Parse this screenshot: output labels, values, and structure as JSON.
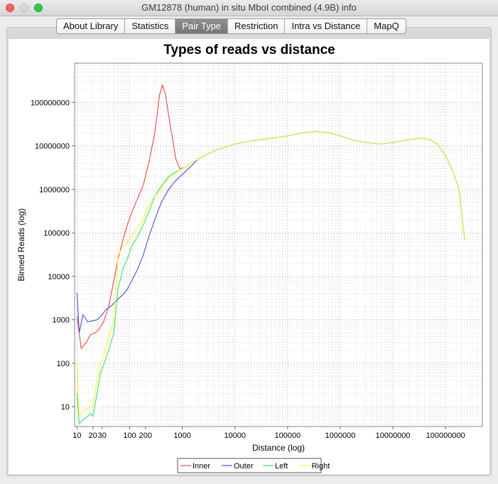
{
  "window": {
    "title": "GM12878 (human)  in situ MboI combined (4.9B) info"
  },
  "tabs": [
    {
      "label": "About Library",
      "active": false
    },
    {
      "label": "Statistics",
      "active": false
    },
    {
      "label": "Pair Type",
      "active": true
    },
    {
      "label": "Restriction",
      "active": false
    },
    {
      "label": "Intra vs Distance",
      "active": false
    },
    {
      "label": "MapQ",
      "active": false
    }
  ],
  "chart_data": {
    "type": "line",
    "title": "Types of reads vs distance",
    "xlabel": "Distance (log)",
    "ylabel": "Binned Reads (log)",
    "x_scale": "log",
    "y_scale": "log",
    "xlim": [
      9,
      500000000
    ],
    "ylim": [
      3.5,
      800000000
    ],
    "grid": true,
    "legend_position": "bottom",
    "x_ticks": [
      {
        "v": 10,
        "label": "10"
      },
      {
        "v": 20,
        "label": "20"
      },
      {
        "v": 30,
        "label": "30"
      },
      {
        "v": 100,
        "label": "100"
      },
      {
        "v": 200,
        "label": "200"
      },
      {
        "v": 1000,
        "label": "1000"
      },
      {
        "v": 10000,
        "label": "10000"
      },
      {
        "v": 100000,
        "label": "100000"
      },
      {
        "v": 1000000,
        "label": "1000000"
      },
      {
        "v": 10000000,
        "label": "10000000"
      },
      {
        "v": 100000000,
        "label": "100000000"
      }
    ],
    "y_ticks": [
      {
        "v": 10,
        "label": "10"
      },
      {
        "v": 100,
        "label": "100"
      },
      {
        "v": 1000,
        "label": "1000"
      },
      {
        "v": 10000,
        "label": "10000"
      },
      {
        "v": 100000,
        "label": "100000"
      },
      {
        "v": 1000000,
        "label": "1000000"
      },
      {
        "v": 10000000,
        "label": "10000000"
      },
      {
        "v": 100000000,
        "label": "100000000"
      }
    ],
    "series": [
      {
        "name": "Inner",
        "color": "#e8474c",
        "points": [
          [
            10,
            1200
          ],
          [
            12,
            220
          ],
          [
            15,
            300
          ],
          [
            18,
            450
          ],
          [
            22,
            500
          ],
          [
            26,
            600
          ],
          [
            32,
            900
          ],
          [
            40,
            2000
          ],
          [
            50,
            8000
          ],
          [
            60,
            25000
          ],
          [
            75,
            70000
          ],
          [
            90,
            150000
          ],
          [
            110,
            300000
          ],
          [
            140,
            600000
          ],
          [
            180,
            1200000
          ],
          [
            230,
            4000000
          ],
          [
            300,
            20000000
          ],
          [
            370,
            150000000
          ],
          [
            420,
            250000000
          ],
          [
            480,
            150000000
          ],
          [
            550,
            50000000
          ],
          [
            650,
            15000000
          ],
          [
            750,
            5000000
          ],
          [
            900,
            3000000
          ],
          [
            1100,
            3200000
          ],
          [
            1500,
            4000000
          ],
          [
            2000,
            5000000
          ],
          [
            3000,
            6500000
          ],
          [
            5000,
            8500000
          ],
          [
            10000,
            11000000
          ],
          [
            20000,
            13000000
          ],
          [
            50000,
            15000000
          ],
          [
            100000,
            17000000
          ],
          [
            200000,
            20000000
          ],
          [
            350000,
            21500000
          ],
          [
            600000,
            20000000
          ],
          [
            1000000,
            17000000
          ],
          [
            2000000,
            13000000
          ],
          [
            4000000,
            11500000
          ],
          [
            6000000,
            11000000
          ],
          [
            10000000,
            12000000
          ],
          [
            20000000,
            14000000
          ],
          [
            35000000,
            15000000
          ],
          [
            50000000,
            14000000
          ],
          [
            70000000,
            11000000
          ],
          [
            100000000,
            6000000
          ],
          [
            140000000,
            2500000
          ],
          [
            180000000,
            1000000
          ],
          [
            230000000,
            70000
          ]
        ]
      },
      {
        "name": "Outer",
        "color": "#4a4ed8",
        "points": [
          [
            10,
            4200
          ],
          [
            11,
            500
          ],
          [
            13,
            1300
          ],
          [
            16,
            900
          ],
          [
            20,
            950
          ],
          [
            24,
            1000
          ],
          [
            30,
            1300
          ],
          [
            35,
            1700
          ],
          [
            45,
            2100
          ],
          [
            60,
            3000
          ],
          [
            75,
            3800
          ],
          [
            90,
            5000
          ],
          [
            110,
            8000
          ],
          [
            140,
            14000
          ],
          [
            180,
            30000
          ],
          [
            230,
            80000
          ],
          [
            300,
            200000
          ],
          [
            400,
            500000
          ],
          [
            550,
            1000000
          ],
          [
            750,
            1600000
          ],
          [
            1000,
            2200000
          ],
          [
            1500,
            3500000
          ],
          [
            2000,
            5000000
          ],
          [
            3000,
            6500000
          ],
          [
            5000,
            8500000
          ],
          [
            10000,
            11000000
          ],
          [
            20000,
            13000000
          ],
          [
            50000,
            15000000
          ],
          [
            100000,
            17000000
          ],
          [
            200000,
            20000000
          ],
          [
            350000,
            21500000
          ],
          [
            600000,
            20000000
          ],
          [
            1000000,
            17000000
          ],
          [
            2000000,
            13000000
          ],
          [
            4000000,
            11500000
          ],
          [
            6000000,
            11000000
          ],
          [
            10000000,
            12000000
          ],
          [
            20000000,
            14000000
          ],
          [
            35000000,
            15000000
          ],
          [
            50000000,
            14000000
          ],
          [
            70000000,
            11000000
          ],
          [
            100000000,
            6000000
          ],
          [
            140000000,
            2500000
          ],
          [
            180000000,
            1000000
          ],
          [
            230000000,
            70000
          ]
        ]
      },
      {
        "name": "Left",
        "color": "#3fe06a",
        "points": [
          [
            10,
            20
          ],
          [
            11,
            4
          ],
          [
            13,
            5
          ],
          [
            16,
            6
          ],
          [
            18,
            7
          ],
          [
            20,
            6
          ],
          [
            24,
            20
          ],
          [
            28,
            60
          ],
          [
            32,
            90
          ],
          [
            40,
            200
          ],
          [
            50,
            500
          ],
          [
            60,
            5000
          ],
          [
            75,
            15000
          ],
          [
            90,
            25000
          ],
          [
            110,
            50000
          ],
          [
            140,
            80000
          ],
          [
            180,
            150000
          ],
          [
            230,
            300000
          ],
          [
            300,
            700000
          ],
          [
            400,
            1200000
          ],
          [
            550,
            2000000
          ],
          [
            750,
            2500000
          ],
          [
            1000,
            3000000
          ],
          [
            1500,
            4000000
          ],
          [
            2000,
            5000000
          ],
          [
            3000,
            6500000
          ],
          [
            5000,
            8500000
          ],
          [
            10000,
            11000000
          ],
          [
            20000,
            13000000
          ],
          [
            50000,
            15000000
          ],
          [
            100000,
            17000000
          ],
          [
            200000,
            20000000
          ],
          [
            350000,
            21500000
          ],
          [
            600000,
            20000000
          ],
          [
            1000000,
            17000000
          ],
          [
            2000000,
            13000000
          ],
          [
            4000000,
            11500000
          ],
          [
            6000000,
            11000000
          ],
          [
            10000000,
            12000000
          ],
          [
            20000000,
            14000000
          ],
          [
            35000000,
            15000000
          ],
          [
            50000000,
            14000000
          ],
          [
            70000000,
            11000000
          ],
          [
            100000000,
            6000000
          ],
          [
            140000000,
            2500000
          ],
          [
            180000000,
            1000000
          ],
          [
            230000000,
            70000
          ]
        ]
      },
      {
        "name": "Right",
        "color": "#f6f33d",
        "points": [
          [
            10,
            100
          ],
          [
            11,
            6
          ],
          [
            13,
            8
          ],
          [
            16,
            9
          ],
          [
            18,
            10
          ],
          [
            20,
            10
          ],
          [
            24,
            40
          ],
          [
            28,
            100
          ],
          [
            32,
            150
          ],
          [
            40,
            400
          ],
          [
            50,
            1000
          ],
          [
            60,
            30000
          ],
          [
            75,
            50000
          ],
          [
            90,
            60000
          ],
          [
            110,
            90000
          ],
          [
            140,
            130000
          ],
          [
            180,
            200000
          ],
          [
            230,
            450000
          ],
          [
            300,
            700000
          ],
          [
            400,
            1000000
          ],
          [
            550,
            1800000
          ],
          [
            750,
            2400000
          ],
          [
            1000,
            3000000
          ],
          [
            1500,
            4000000
          ],
          [
            2000,
            5000000
          ],
          [
            3000,
            6500000
          ],
          [
            5000,
            8500000
          ],
          [
            10000,
            11000000
          ],
          [
            20000,
            13000000
          ],
          [
            50000,
            15000000
          ],
          [
            100000,
            17000000
          ],
          [
            200000,
            20000000
          ],
          [
            350000,
            21500000
          ],
          [
            600000,
            20000000
          ],
          [
            1000000,
            17000000
          ],
          [
            2000000,
            13000000
          ],
          [
            4000000,
            11500000
          ],
          [
            6000000,
            11000000
          ],
          [
            10000000,
            12000000
          ],
          [
            20000000,
            14000000
          ],
          [
            35000000,
            15000000
          ],
          [
            50000000,
            14000000
          ],
          [
            70000000,
            11000000
          ],
          [
            100000000,
            6000000
          ],
          [
            140000000,
            2500000
          ],
          [
            180000000,
            1000000
          ],
          [
            230000000,
            70000
          ]
        ]
      }
    ]
  }
}
